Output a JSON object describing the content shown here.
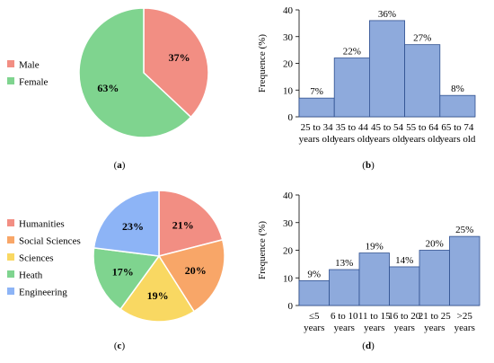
{
  "panels": [
    {
      "label": "a",
      "chart_data": {
        "type": "pie",
        "categories": [
          "Male",
          "Female"
        ],
        "values": [
          37,
          63
        ],
        "labels": [
          "37%",
          "63%"
        ],
        "colors": [
          "#f28e83",
          "#7fd48f"
        ],
        "legend": "left"
      }
    },
    {
      "label": "b",
      "chart_data": {
        "type": "bar",
        "categories": [
          "25 to 34 years old",
          "35 to 44 years old",
          "45 to 54 years old",
          "55 to 64 years old",
          "65 to 74 years old"
        ],
        "tick_lines": [
          [
            "25 to 34",
            "years old"
          ],
          [
            "35 to 44",
            "years old"
          ],
          [
            "45 to 54",
            "years old"
          ],
          [
            "55 to 64",
            "years old"
          ],
          [
            "65 to 74",
            "years old"
          ]
        ],
        "values": [
          7,
          22,
          36,
          27,
          8
        ],
        "labels": [
          "7%",
          "22%",
          "36%",
          "27%",
          "8%"
        ],
        "ylabel": "Frequence (%)",
        "ylim": [
          0,
          40
        ],
        "yticks": [
          0,
          10,
          20,
          30,
          40
        ],
        "color": "#8eaadc"
      }
    },
    {
      "label": "c",
      "chart_data": {
        "type": "pie",
        "categories": [
          "Humanities",
          "Social Sciences",
          "Sciences",
          "Heath",
          "Engineering"
        ],
        "values": [
          21,
          20,
          19,
          17,
          23
        ],
        "labels": [
          "21%",
          "20%",
          "19%",
          "17%",
          "23%"
        ],
        "colors": [
          "#f28e83",
          "#f8a668",
          "#f9d862",
          "#7fd48f",
          "#8db4f6"
        ],
        "legend": "left"
      }
    },
    {
      "label": "d",
      "chart_data": {
        "type": "bar",
        "categories": [
          "≤5 years",
          "6 to 10 years",
          "11 to 15 years",
          "16 to 20 years",
          "21 to 25 years",
          ">25 years"
        ],
        "tick_lines": [
          [
            "≤5",
            "years"
          ],
          [
            "6 to 10",
            "years"
          ],
          [
            "11 to 15",
            "years"
          ],
          [
            "16 to 20",
            "years"
          ],
          [
            "21 to 25",
            "years"
          ],
          [
            ">25",
            "years"
          ]
        ],
        "values": [
          9,
          13,
          19,
          14,
          20,
          25
        ],
        "labels": [
          "9%",
          "13%",
          "19%",
          "14%",
          "20%",
          "25%"
        ],
        "ylabel": "Frequence (%)",
        "ylim": [
          0,
          40
        ],
        "yticks": [
          0,
          10,
          20,
          30,
          40
        ],
        "color": "#8eaadc"
      }
    }
  ]
}
